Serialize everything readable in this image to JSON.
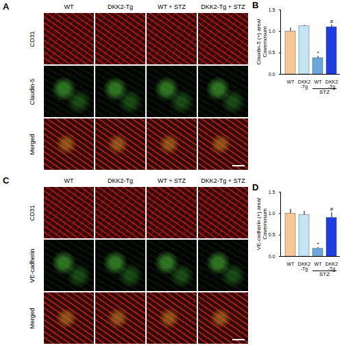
{
  "image_panels": [
    {
      "label": "A",
      "columns": [
        "WT",
        "DKK2-Tg",
        "WT + STZ",
        "DKK2-Tg + STZ"
      ],
      "rows": [
        "CD31",
        "Claudin-5",
        "Merged"
      ]
    },
    {
      "label": "C",
      "columns": [
        "WT",
        "DKK2-Tg",
        "WT + STZ",
        "DKK2-Tg + STZ"
      ],
      "rows": [
        "CD31",
        "VE-cadherin",
        "Merged"
      ]
    }
  ],
  "chart_data": [
    {
      "type": "bar",
      "title": "B",
      "ylabel": "Claudin-5 (+) area/ Cavernosum",
      "categories": [
        "WT",
        "DKK2\n-Tg",
        "WT",
        "DKK2\n-Tg"
      ],
      "groups": [
        null,
        null,
        "STZ",
        "STZ"
      ],
      "values": [
        1.0,
        1.12,
        0.38,
        1.1
      ],
      "errors": [
        0.08,
        0.02,
        0.04,
        0.05
      ],
      "annotations": [
        null,
        null,
        "*",
        "#"
      ],
      "colors": [
        "#f8c796",
        "#c4e6f4",
        "#6aa8dc",
        "#1e3ee0"
      ],
      "ylim": [
        0,
        1.5
      ],
      "yticks": [
        {
          "value": 0,
          "label": "0.0"
        },
        {
          "value": 0.5,
          "label": "0.5"
        },
        {
          "value": 1,
          "label": "1.0"
        },
        {
          "value": 1.5,
          "label": "1.5"
        }
      ]
    },
    {
      "type": "bar",
      "title": "D",
      "ylabel": "VE-cadherin (+) area/ Cavernosum",
      "categories": [
        "WT",
        "DKK2\n-Tg",
        "WT",
        "DKK2\n-Tg"
      ],
      "groups": [
        null,
        null,
        "STZ",
        "STZ"
      ],
      "values": [
        1.0,
        0.97,
        0.18,
        0.9
      ],
      "errors": [
        0.1,
        0.08,
        0.03,
        0.12
      ],
      "annotations": [
        null,
        null,
        "*",
        "#"
      ],
      "colors": [
        "#f8c796",
        "#c4e6f4",
        "#6aa8dc",
        "#1e3ee0"
      ],
      "ylim": [
        0,
        1.5
      ],
      "yticks": [
        {
          "value": 0,
          "label": "0.0"
        },
        {
          "value": 0.5,
          "label": "0.5"
        },
        {
          "value": 1,
          "label": "1.0"
        },
        {
          "value": 1.5,
          "label": "1.5"
        }
      ]
    }
  ]
}
